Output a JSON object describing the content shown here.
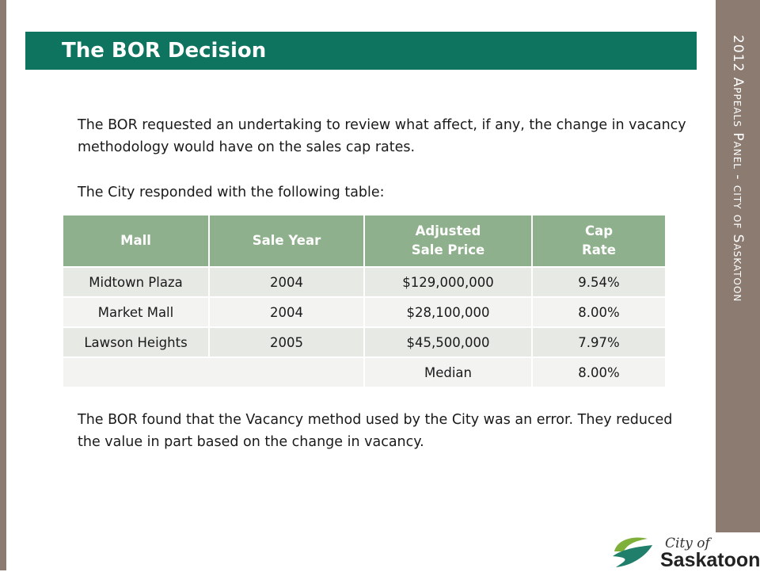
{
  "slide": {
    "title": "The BOR Decision",
    "side_title": "2012 Appeals Panel - city of Saskatoon"
  },
  "paragraphs": {
    "intro": "The BOR requested an undertaking to review what affect, if any, the change in vacancy methodology would have on the sales cap rates.",
    "response": "The City responded with the following table:",
    "finding": "The BOR found that the Vacancy method used by the City was an error.  They reduced the value in part based on the change in vacancy."
  },
  "table": {
    "headers": {
      "mall": "Mall",
      "sale_year": "Sale Year",
      "price_line1": "Adjusted",
      "price_line2": "Sale Price",
      "cap_line1": "Cap",
      "cap_line2": "Rate"
    },
    "rows": [
      {
        "mall": "Midtown Plaza",
        "year": "2004",
        "price": "$129,000,000",
        "cap": "9.54%"
      },
      {
        "mall": "Market Mall",
        "year": "2004",
        "price": "$28,100,000",
        "cap": "8.00%"
      },
      {
        "mall": "Lawson Heights",
        "year": "2005",
        "price": "$45,500,000",
        "cap": "7.97%"
      }
    ],
    "median_label": "Median",
    "median_value": "8.00%"
  },
  "logo": {
    "small": "City of",
    "big": "Saskatoon"
  },
  "colors": {
    "title_bar": "#0e7460",
    "side_bars": "#8c7b70",
    "table_header": "#8fb08c"
  }
}
